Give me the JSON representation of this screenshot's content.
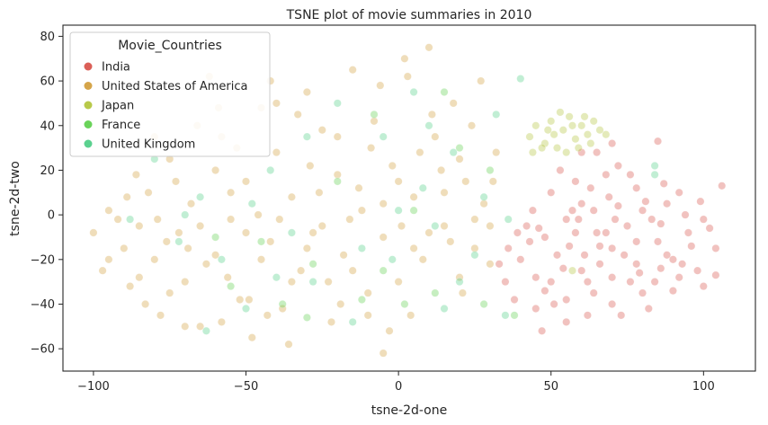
{
  "chart_data": {
    "type": "scatter",
    "title": "TSNE plot of movie summaries in 2010",
    "xlabel": "tsne-2d-one",
    "ylabel": "tsne-2d-two",
    "xlim": [
      -110,
      117
    ],
    "ylim": [
      -70,
      85
    ],
    "xticks": [
      -100,
      -50,
      0,
      50,
      100
    ],
    "yticks": [
      -60,
      -40,
      -20,
      0,
      20,
      40,
      60,
      80
    ],
    "grid": false,
    "legend": {
      "title": "Movie_Countries",
      "placement": "top-left"
    },
    "series": [
      {
        "name": "India",
        "color": "#db5f57",
        "points": [
          [
            42,
            -5
          ],
          [
            48,
            -10
          ],
          [
            55,
            -2
          ],
          [
            60,
            5
          ],
          [
            65,
            -8
          ],
          [
            70,
            -15
          ],
          [
            75,
            -5
          ],
          [
            80,
            2
          ],
          [
            85,
            -12
          ],
          [
            90,
            -20
          ],
          [
            95,
            -8
          ],
          [
            100,
            -2
          ],
          [
            104,
            -15
          ],
          [
            106,
            13
          ],
          [
            104,
            -27
          ],
          [
            88,
            5
          ],
          [
            78,
            12
          ],
          [
            68,
            18
          ],
          [
            60,
            -25
          ],
          [
            52,
            -18
          ],
          [
            45,
            -28
          ],
          [
            40,
            -20
          ],
          [
            35,
            -30
          ],
          [
            33,
            -22
          ],
          [
            38,
            -38
          ],
          [
            45,
            -42
          ],
          [
            55,
            -38
          ],
          [
            62,
            -30
          ],
          [
            70,
            -28
          ],
          [
            78,
            -22
          ],
          [
            84,
            -30
          ],
          [
            92,
            -28
          ],
          [
            98,
            -25
          ],
          [
            85,
            33
          ],
          [
            72,
            22
          ],
          [
            65,
            28
          ],
          [
            58,
            15
          ],
          [
            50,
            10
          ],
          [
            44,
            2
          ],
          [
            55,
            -48
          ],
          [
            62,
            -45
          ],
          [
            70,
            -40
          ],
          [
            80,
            -35
          ],
          [
            68,
            -8
          ],
          [
            74,
            -18
          ],
          [
            86,
            -4
          ],
          [
            94,
            0
          ],
          [
            50,
            -30
          ],
          [
            58,
            -8
          ],
          [
            64,
            2
          ],
          [
            72,
            4
          ],
          [
            78,
            -12
          ],
          [
            88,
            -18
          ],
          [
            96,
            -14
          ],
          [
            102,
            -6
          ],
          [
            47,
            -52
          ],
          [
            66,
            -22
          ],
          [
            82,
            -42
          ],
          [
            90,
            -34
          ],
          [
            100,
            -32
          ],
          [
            53,
            20
          ],
          [
            60,
            28
          ],
          [
            70,
            32
          ],
          [
            56,
            -14
          ],
          [
            64,
            -35
          ],
          [
            76,
            -30
          ],
          [
            83,
            -2
          ],
          [
            92,
            10
          ],
          [
            99,
            6
          ],
          [
            76,
            18
          ],
          [
            43,
            -12
          ],
          [
            48,
            -34
          ],
          [
            57,
            2
          ],
          [
            63,
            12
          ],
          [
            71,
            -2
          ],
          [
            79,
            -26
          ],
          [
            86,
            -24
          ],
          [
            93,
            -22
          ],
          [
            39,
            -8
          ],
          [
            36,
            -15
          ],
          [
            73,
            -45
          ],
          [
            66,
            -14
          ],
          [
            61,
            -18
          ],
          [
            54,
            -24
          ],
          [
            46,
            -6
          ],
          [
            51,
            -40
          ],
          [
            81,
            6
          ],
          [
            87,
            14
          ],
          [
            69,
            8
          ],
          [
            59,
            -2
          ]
        ]
      },
      {
        "name": "United States of America",
        "color": "#d5a54a",
        "points": [
          [
            -100,
            -8
          ],
          [
            -97,
            -25
          ],
          [
            -95,
            2
          ],
          [
            -90,
            -15
          ],
          [
            -88,
            -32
          ],
          [
            -85,
            -5
          ],
          [
            -82,
            10
          ],
          [
            -80,
            -20
          ],
          [
            -78,
            -45
          ],
          [
            -75,
            25
          ],
          [
            -72,
            -8
          ],
          [
            -70,
            -30
          ],
          [
            -68,
            5
          ],
          [
            -65,
            -50
          ],
          [
            -62,
            62
          ],
          [
            -60,
            -18
          ],
          [
            -58,
            35
          ],
          [
            -55,
            -2
          ],
          [
            -52,
            -38
          ],
          [
            -50,
            15
          ],
          [
            -48,
            -55
          ],
          [
            -45,
            48
          ],
          [
            -42,
            -12
          ],
          [
            -40,
            28
          ],
          [
            -38,
            -42
          ],
          [
            -35,
            8
          ],
          [
            -32,
            -25
          ],
          [
            -30,
            55
          ],
          [
            -28,
            -8
          ],
          [
            -25,
            38
          ],
          [
            -22,
            -48
          ],
          [
            -20,
            18
          ],
          [
            -18,
            -18
          ],
          [
            -15,
            65
          ],
          [
            -12,
            2
          ],
          [
            -10,
            -35
          ],
          [
            -8,
            42
          ],
          [
            -5,
            -10
          ],
          [
            -2,
            22
          ],
          [
            0,
            -30
          ],
          [
            2,
            70
          ],
          [
            5,
            8
          ],
          [
            8,
            -20
          ],
          [
            10,
            75
          ],
          [
            12,
            35
          ],
          [
            15,
            -5
          ],
          [
            18,
            50
          ],
          [
            20,
            -28
          ],
          [
            22,
            15
          ],
          [
            25,
            -15
          ],
          [
            28,
            5
          ],
          [
            30,
            -22
          ],
          [
            32,
            28
          ],
          [
            -92,
            -2
          ],
          [
            -86,
            18
          ],
          [
            -76,
            -12
          ],
          [
            -66,
            40
          ],
          [
            -56,
            -28
          ],
          [
            -46,
            0
          ],
          [
            -36,
            -58
          ],
          [
            -26,
            10
          ],
          [
            -16,
            -2
          ],
          [
            -6,
            58
          ],
          [
            4,
            -45
          ],
          [
            14,
            20
          ],
          [
            24,
            40
          ],
          [
            -83,
            -40
          ],
          [
            -73,
            15
          ],
          [
            -63,
            -22
          ],
          [
            -53,
            30
          ],
          [
            -43,
            -45
          ],
          [
            -33,
            45
          ],
          [
            -23,
            -30
          ],
          [
            -13,
            12
          ],
          [
            -3,
            -52
          ],
          [
            7,
            28
          ],
          [
            17,
            -12
          ],
          [
            27,
            60
          ],
          [
            -80,
            35
          ],
          [
            -70,
            -50
          ],
          [
            -60,
            20
          ],
          [
            -50,
            -8
          ],
          [
            -40,
            50
          ],
          [
            -30,
            -15
          ],
          [
            -20,
            35
          ],
          [
            -10,
            -45
          ],
          [
            0,
            15
          ],
          [
            10,
            -8
          ],
          [
            20,
            25
          ],
          [
            30,
            -5
          ],
          [
            -95,
            -20
          ],
          [
            -85,
            -28
          ],
          [
            -75,
            -35
          ],
          [
            -65,
            -5
          ],
          [
            -55,
            10
          ],
          [
            -45,
            -20
          ],
          [
            -35,
            -30
          ],
          [
            -25,
            -5
          ],
          [
            -15,
            -25
          ],
          [
            -5,
            5
          ],
          [
            5,
            -15
          ],
          [
            15,
            10
          ],
          [
            25,
            -2
          ],
          [
            -89,
            8
          ],
          [
            -79,
            -2
          ],
          [
            -69,
            -15
          ],
          [
            -59,
            48
          ],
          [
            -49,
            -38
          ],
          [
            -39,
            -2
          ],
          [
            -29,
            22
          ],
          [
            -19,
            -40
          ],
          [
            -9,
            30
          ],
          [
            1,
            -5
          ],
          [
            11,
            45
          ],
          [
            21,
            -35
          ],
          [
            31,
            15
          ],
          [
            -5,
            -62
          ],
          [
            3,
            62
          ],
          [
            -58,
            -48
          ],
          [
            -42,
            60
          ]
        ]
      },
      {
        "name": "Japan",
        "color": "#b8c94a",
        "points": [
          [
            45,
            40
          ],
          [
            48,
            32
          ],
          [
            50,
            42
          ],
          [
            52,
            30
          ],
          [
            54,
            38
          ],
          [
            56,
            44
          ],
          [
            58,
            34
          ],
          [
            60,
            40
          ],
          [
            62,
            36
          ],
          [
            64,
            42
          ],
          [
            55,
            28
          ],
          [
            51,
            36
          ],
          [
            47,
            30
          ],
          [
            59,
            30
          ],
          [
            66,
            38
          ],
          [
            53,
            46
          ],
          [
            57,
            40
          ],
          [
            61,
            44
          ],
          [
            49,
            38
          ],
          [
            63,
            32
          ],
          [
            43,
            35
          ],
          [
            68,
            36
          ],
          [
            44,
            28
          ],
          [
            57,
            -25
          ]
        ]
      },
      {
        "name": "France",
        "color": "#6ad35a",
        "points": [
          [
            -45,
            -12
          ],
          [
            -38,
            -40
          ],
          [
            -30,
            -46
          ],
          [
            -20,
            15
          ],
          [
            -12,
            -38
          ],
          [
            -5,
            -25
          ],
          [
            5,
            2
          ],
          [
            12,
            -35
          ],
          [
            20,
            30
          ],
          [
            28,
            -40
          ],
          [
            -60,
            -10
          ],
          [
            -55,
            -32
          ],
          [
            38,
            -45
          ],
          [
            -8,
            45
          ],
          [
            15,
            55
          ],
          [
            -28,
            -22
          ],
          [
            2,
            -40
          ],
          [
            30,
            20
          ]
        ]
      },
      {
        "name": "United Kingdom",
        "color": "#5bd18f",
        "points": [
          [
            -88,
            -2
          ],
          [
            -80,
            25
          ],
          [
            -72,
            -12
          ],
          [
            -65,
            8
          ],
          [
            -58,
            -20
          ],
          [
            -50,
            -42
          ],
          [
            -42,
            20
          ],
          [
            -35,
            -8
          ],
          [
            -28,
            -30
          ],
          [
            -20,
            50
          ],
          [
            -12,
            -15
          ],
          [
            -5,
            35
          ],
          [
            0,
            2
          ],
          [
            5,
            55
          ],
          [
            12,
            -5
          ],
          [
            18,
            28
          ],
          [
            25,
            -18
          ],
          [
            32,
            45
          ],
          [
            -63,
            -52
          ],
          [
            -48,
            5
          ],
          [
            -30,
            35
          ],
          [
            -15,
            -48
          ],
          [
            10,
            40
          ],
          [
            20,
            -30
          ],
          [
            35,
            -45
          ],
          [
            40,
            61
          ],
          [
            84,
            22
          ],
          [
            84,
            18
          ],
          [
            -2,
            -20
          ],
          [
            8,
            12
          ],
          [
            15,
            -42
          ],
          [
            -40,
            -28
          ],
          [
            -70,
            0
          ],
          [
            28,
            8
          ],
          [
            36,
            -2
          ]
        ]
      }
    ]
  }
}
